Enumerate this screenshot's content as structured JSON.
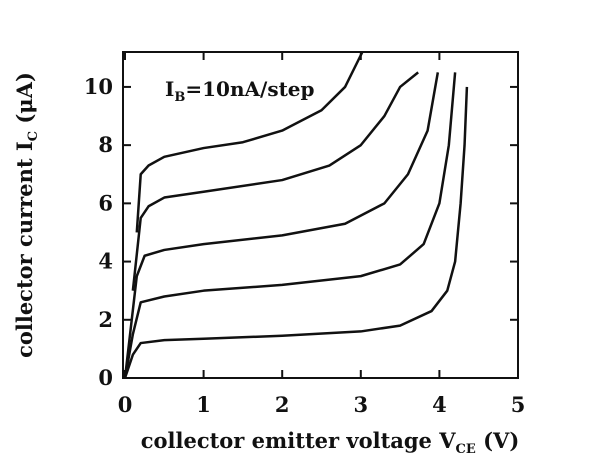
{
  "chart_data": {
    "type": "line",
    "annotation": {
      "main": "I",
      "sub": "B",
      "rest": "=10nA/step"
    },
    "x_label": {
      "main": "collector emitter voltage V",
      "sub": "CE",
      "rest": " (V)"
    },
    "y_label": {
      "main": "collector current I",
      "sub": "C",
      "rest": " (μA)"
    },
    "xlim": [
      0,
      5
    ],
    "ylim": [
      0,
      11.2
    ],
    "xticks": [
      0,
      1,
      2,
      3,
      4,
      5
    ],
    "yticks": [
      0,
      2,
      4,
      6,
      8,
      10
    ],
    "series": [
      {
        "color": "#111111",
        "x": [
          0,
          0.1,
          0.2,
          0.5,
          1,
          2,
          3,
          3.5,
          3.9,
          4.1,
          4.2,
          4.27,
          4.32,
          4.35
        ],
        "values": [
          0,
          0.8,
          1.2,
          1.3,
          1.35,
          1.45,
          1.6,
          1.8,
          2.3,
          3,
          4,
          6,
          8,
          10
        ]
      },
      {
        "color": "#111111",
        "x": [
          0,
          0.1,
          0.2,
          0.5,
          1,
          2,
          3,
          3.5,
          3.8,
          4.0,
          4.12,
          4.2
        ],
        "values": [
          0,
          1.5,
          2.6,
          2.8,
          3,
          3.2,
          3.5,
          3.9,
          4.6,
          6,
          8,
          10.5
        ]
      },
      {
        "color": "#111111",
        "x": [
          0,
          0.15,
          0.25,
          0.5,
          1,
          2,
          2.8,
          3.3,
          3.6,
          3.85,
          3.98
        ],
        "values": [
          0,
          3.5,
          4.2,
          4.4,
          4.6,
          4.9,
          5.3,
          6,
          7,
          8.5,
          10.5
        ]
      },
      {
        "color": "#111111",
        "x": [
          0.1,
          0.2,
          0.3,
          0.5,
          1,
          2,
          2.6,
          3,
          3.3,
          3.5,
          3.73
        ],
        "values": [
          3,
          5.5,
          5.9,
          6.2,
          6.4,
          6.8,
          7.3,
          8,
          9,
          10,
          10.5
        ]
      },
      {
        "color": "#111111",
        "x": [
          0.15,
          0.2,
          0.3,
          0.5,
          1,
          1.5,
          2,
          2.5,
          2.8,
          3.02
        ],
        "values": [
          5,
          7,
          7.3,
          7.6,
          7.9,
          8.1,
          8.5,
          9.2,
          10,
          11.2
        ]
      }
    ]
  }
}
